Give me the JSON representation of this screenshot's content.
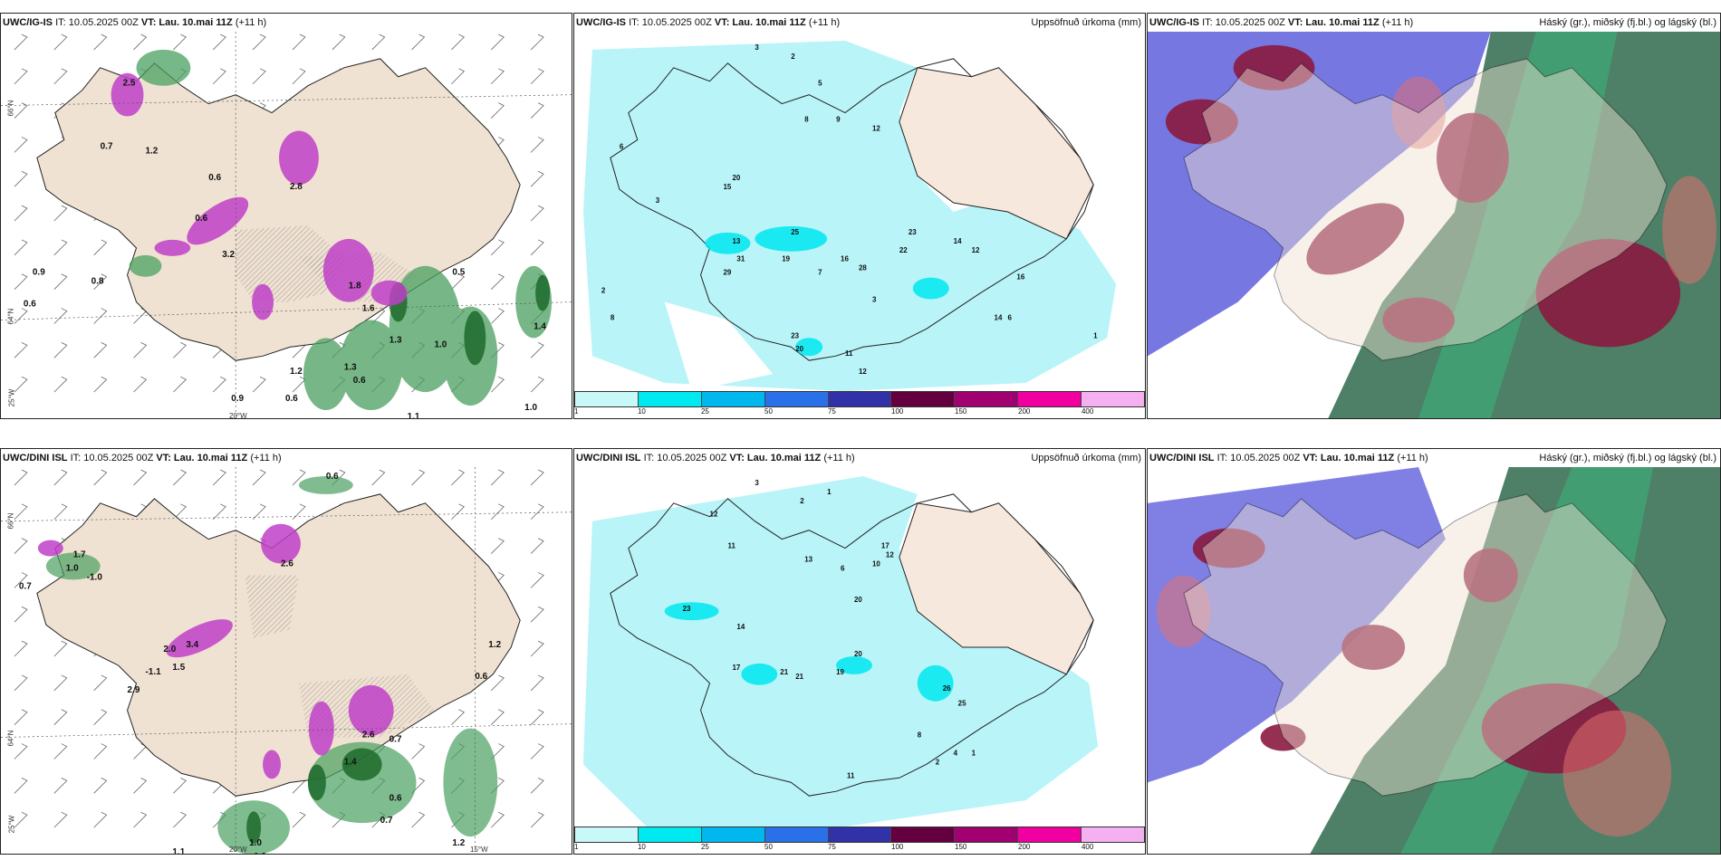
{
  "panels": [
    {
      "id": "p1",
      "model": "UWC/IG-IS",
      "it": "IT: 10.05.2025 00Z",
      "vt_label": "VT:",
      "vt": "Lau. 10.mai 11Z",
      "lead": "(+11 h)",
      "right": "",
      "kind": "precip"
    },
    {
      "id": "p2",
      "model": "UWC/IG-IS",
      "it": "IT: 10.05.2025 00Z",
      "vt_label": "VT:",
      "vt": "Lau. 10.mai 11Z",
      "lead": "(+11 h)",
      "right": "Uppsöfnuð úrkoma (mm)",
      "kind": "accum"
    },
    {
      "id": "p3",
      "model": "UWC/IG-IS",
      "it": "IT: 10.05.2025 00Z",
      "vt_label": "VT:",
      "vt": "Lau. 10.mai 11Z",
      "lead": "(+11 h)",
      "right": "Háský (gr.), miðský (fj.bl.) og lágský (bl.)",
      "kind": "cloud"
    },
    {
      "id": "p4",
      "model": "UWC/DINI ISL",
      "it": "IT: 10.05.2025 00Z",
      "vt_label": "VT:",
      "vt": "Lau. 10.mai 11Z",
      "lead": "(+11 h)",
      "right": "",
      "kind": "precip"
    },
    {
      "id": "p5",
      "model": "UWC/DINI ISL",
      "it": "IT: 10.05.2025 00Z",
      "vt_label": "VT:",
      "vt": "Lau. 10.mai 11Z",
      "lead": "(+11 h)",
      "right": "Uppsöfnuð úrkoma (mm)",
      "kind": "accum"
    },
    {
      "id": "p6",
      "model": "UWC/DINI ISL",
      "it": "IT: 10.05.2025 00Z",
      "vt_label": "VT:",
      "vt": "Lau. 10.mai 11Z",
      "lead": "(+11 h)",
      "right": "Háský (gr.), miðský (fj.bl.) og lágský (bl.)",
      "kind": "cloud"
    }
  ],
  "colorbar": {
    "ticks": [
      "1",
      "10",
      "25",
      "50",
      "75",
      "100",
      "150",
      "200",
      "400"
    ],
    "colors": [
      "#c8f8f8",
      "#00e8f0",
      "#00b8ee",
      "#2a70e8",
      "#3232a8",
      "#640040",
      "#a00070",
      "#f000a0",
      "#f4b0f0"
    ]
  },
  "axis_labels": {
    "lat66": "66°N",
    "lat64": "64°N",
    "lon25": "25°W",
    "lon20": "20°W",
    "lon15": "15°W"
  },
  "colors": {
    "land": "#f0e2d2",
    "green_precip": "#3a9a4a",
    "magenta_precip": "#c040c8",
    "accum_fill": "#b8f4f8",
    "high_cloud": "#2e6a4c",
    "mid_cloud": "#8a1a40",
    "low_cloud": "#3a3ad0"
  },
  "labels_p1": [
    "2.5",
    "0.7",
    "1.2",
    "0.6",
    "2.8",
    "0.6",
    "3.2",
    "0.9",
    "0.8",
    "0.6",
    "1.8",
    "0.5",
    "1.3",
    "1.0",
    "1.6",
    "1.4",
    "0.9",
    "0.6",
    "1.3",
    "1.2",
    "0.6",
    "1.1",
    "1.0"
  ],
  "labels_p2": [
    "3",
    "2",
    "5",
    "8",
    "9",
    "6",
    "3",
    "12",
    "20",
    "15",
    "13",
    "31",
    "29",
    "19",
    "25",
    "16",
    "28",
    "22",
    "23",
    "14",
    "12",
    "16",
    "14",
    "7",
    "2",
    "8",
    "23",
    "20",
    "11",
    "12",
    "3",
    "6",
    "1"
  ],
  "labels_p4": [
    "0.6",
    "1.7",
    "1.0",
    "-1.0",
    "0.7",
    "2.6",
    "3.4",
    "2.0",
    "1.5",
    "-1.1",
    "2.9",
    "1.2",
    "0.6",
    "2.6",
    "0.7",
    "1.4",
    "0.6",
    "0.7",
    "1.0",
    "1.2",
    "1.1",
    "1.0"
  ],
  "labels_p5": [
    "3",
    "2",
    "1",
    "12",
    "11",
    "13",
    "6",
    "10",
    "17",
    "12",
    "20",
    "23",
    "14",
    "17",
    "21",
    "21",
    "19",
    "20",
    "26",
    "25",
    "11",
    "4",
    "8",
    "2",
    "1"
  ]
}
